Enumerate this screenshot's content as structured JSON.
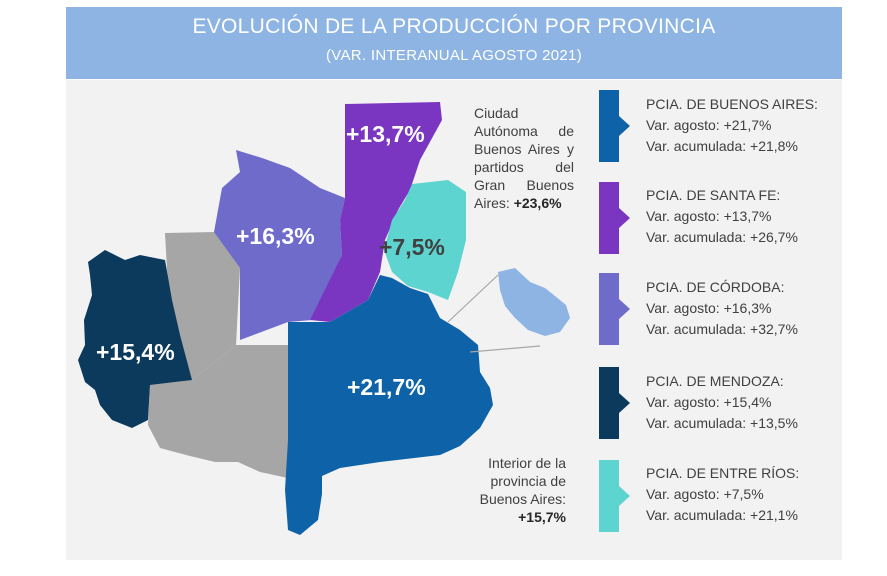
{
  "header": {
    "title": "EVOLUCIÓN DE LA PRODUCCIÓN POR PROVINCIA",
    "subtitle": "(VAR. INTERANUAL AGOSTO 2021)"
  },
  "colors": {
    "header_bg": "#8DB4E2",
    "panel_bg": "#F2F2F2",
    "buenos_aires": "#0E63A8",
    "santa_fe": "#7A36C0",
    "cordoba": "#6E6BCB",
    "mendoza": "#0C3A5C",
    "entre_rios": "#5ED4D0",
    "other_provinces": "#A6A6A6",
    "caba_inset": "#8DB4E2"
  },
  "map": {
    "labels": {
      "santa_fe": "+13,7%",
      "cordoba": "+16,3%",
      "entre_rios": "+7,5%",
      "mendoza": "+15,4%",
      "buenos_aires": "+21,7%"
    },
    "caba_note": {
      "text": "Ciudad Autónoma de Buenos Aires y partidos del Gran Buenos Aires:",
      "value": "+23,6%"
    },
    "interior_note": {
      "text": "Interior de la provincia de Buenos Aires:",
      "value": "+15,7%"
    }
  },
  "legend": [
    {
      "province": "PCIA. DE BUENOS AIRES:",
      "agosto": "Var. agosto: +21,7%",
      "acumulada": "Var. acumulada: +21,8%",
      "color": "#0E63A8"
    },
    {
      "province": "PCIA. DE SANTA FE:",
      "agosto": "Var. agosto: +13,7%",
      "acumulada": "Var. acumulada: +26,7%",
      "color": "#7A36C0"
    },
    {
      "province": "PCIA. DE CÓRDOBA:",
      "agosto": "Var. agosto: +16,3%",
      "acumulada": "Var. acumulada: +32,7%",
      "color": "#6E6BCB"
    },
    {
      "province": "PCIA. DE MENDOZA:",
      "agosto": "Var. agosto: +15,4%",
      "acumulada": "Var. acumulada: +13,5%",
      "color": "#0C3A5C"
    },
    {
      "province": "PCIA. DE ENTRE RÍOS:",
      "agosto": "Var. agosto: +7,5%",
      "acumulada": "Var. acumulada: +21,1%",
      "color": "#5ED4D0"
    }
  ]
}
